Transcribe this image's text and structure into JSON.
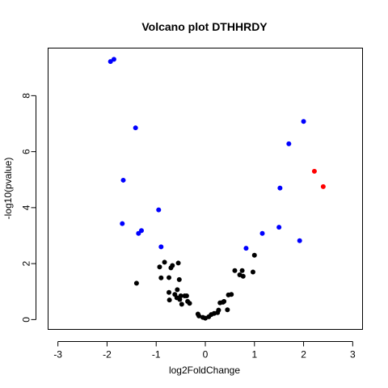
{
  "chart_data": {
    "type": "scatter",
    "title": "Volcano plot DTHHRDY",
    "xlabel": "log2FoldChange",
    "ylabel": "-log10(pvalue)",
    "xlim": [
      -3.2,
      3.2
    ],
    "ylim": [
      -0.35,
      9.7
    ],
    "xticks": [
      -3,
      -2,
      -1,
      0,
      1,
      2,
      3
    ],
    "yticks": [
      0,
      2,
      4,
      6,
      8
    ],
    "grid": false,
    "legend": "none",
    "colors": {
      "non_significant": "#000000",
      "significant": "#0000ff",
      "highlight": "#ff0000"
    },
    "series": [
      {
        "color": "#000000",
        "points": [
          [
            -1.4,
            1.3
          ],
          [
            -0.93,
            1.88
          ],
          [
            -0.9,
            1.49
          ],
          [
            -0.83,
            2.05
          ],
          [
            -0.74,
            1.5
          ],
          [
            -0.7,
            1.85
          ],
          [
            -0.67,
            1.93
          ],
          [
            -0.55,
            2.02
          ],
          [
            -0.53,
            1.43
          ],
          [
            -0.57,
            1.07
          ],
          [
            -0.74,
            0.97
          ],
          [
            -0.73,
            0.7
          ],
          [
            -0.62,
            0.9
          ],
          [
            -0.58,
            0.78
          ],
          [
            -0.52,
            0.72
          ],
          [
            -0.5,
            0.85
          ],
          [
            -0.48,
            0.55
          ],
          [
            -0.42,
            0.85
          ],
          [
            -0.38,
            0.85
          ],
          [
            -0.36,
            0.65
          ],
          [
            -0.32,
            0.58
          ],
          [
            -0.15,
            0.2
          ],
          [
            -0.13,
            0.13
          ],
          [
            -0.05,
            0.08
          ],
          [
            0.0,
            0.05
          ],
          [
            0.07,
            0.1
          ],
          [
            0.12,
            0.18
          ],
          [
            0.18,
            0.22
          ],
          [
            0.25,
            0.25
          ],
          [
            0.27,
            0.34
          ],
          [
            0.3,
            0.6
          ],
          [
            0.36,
            0.62
          ],
          [
            0.38,
            0.65
          ],
          [
            0.45,
            0.35
          ],
          [
            0.47,
            0.88
          ],
          [
            0.53,
            0.9
          ],
          [
            0.6,
            1.75
          ],
          [
            0.7,
            1.6
          ],
          [
            0.75,
            1.75
          ],
          [
            0.77,
            1.55
          ],
          [
            0.97,
            1.7
          ],
          [
            1.0,
            2.3
          ]
        ]
      },
      {
        "color": "#0000ff",
        "points": [
          [
            -1.93,
            9.22
          ],
          [
            -1.86,
            9.3
          ],
          [
            -1.42,
            6.85
          ],
          [
            -1.67,
            4.98
          ],
          [
            -1.69,
            3.43
          ],
          [
            -1.3,
            3.18
          ],
          [
            -1.36,
            3.08
          ],
          [
            -0.95,
            3.92
          ],
          [
            -0.9,
            2.6
          ],
          [
            0.83,
            2.55
          ],
          [
            1.16,
            3.08
          ],
          [
            1.5,
            3.3
          ],
          [
            1.52,
            4.7
          ],
          [
            1.7,
            6.28
          ],
          [
            1.92,
            2.82
          ],
          [
            2.0,
            7.08
          ]
        ]
      },
      {
        "color": "#ff0000",
        "points": [
          [
            2.22,
            5.3
          ],
          [
            2.4,
            4.75
          ]
        ]
      }
    ]
  }
}
